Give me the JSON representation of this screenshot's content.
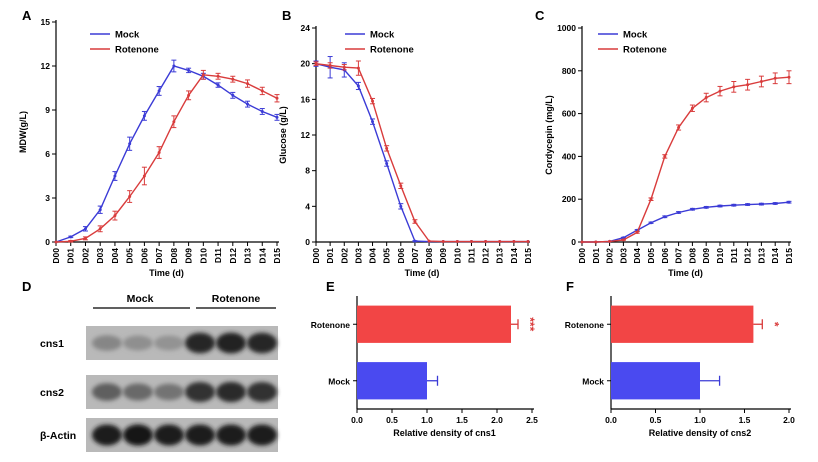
{
  "colors": {
    "mock": "#3b3bd6",
    "rotenone": "#d93c3c",
    "axis": "#000000",
    "bar_mock": "#4a4af0",
    "bar_rotenone": "#f24545"
  },
  "chart_data": [
    {
      "panel": "A",
      "type": "line",
      "x": [
        "D00",
        "D01",
        "D02",
        "D03",
        "D04",
        "D05",
        "D06",
        "D07",
        "D08",
        "D09",
        "D10",
        "D11",
        "D12",
        "D13",
        "D14",
        "D15"
      ],
      "xlabel": "Time (d)",
      "ylabel": "MDW(g/L)",
      "ylim": [
        0,
        15
      ],
      "yticks": [
        "0",
        "3",
        "6",
        "9",
        "12",
        "15"
      ],
      "legend": "top-left",
      "series": [
        {
          "name": "Mock",
          "color": "#3b3bd6",
          "values": [
            0,
            0.35,
            0.9,
            2.2,
            4.5,
            6.7,
            8.6,
            10.3,
            12.0,
            11.7,
            11.3,
            10.7,
            10.0,
            9.4,
            8.9,
            8.5
          ],
          "errors": [
            0,
            0.05,
            0.15,
            0.25,
            0.3,
            0.45,
            0.3,
            0.3,
            0.4,
            0.15,
            0.2,
            0.15,
            0.2,
            0.2,
            0.2,
            0.2
          ]
        },
        {
          "name": "Rotenone",
          "color": "#d93c3c",
          "values": [
            0,
            0.05,
            0.25,
            0.9,
            1.8,
            3.1,
            4.5,
            6.1,
            8.2,
            10.0,
            11.4,
            11.3,
            11.1,
            10.8,
            10.3,
            9.8
          ],
          "errors": [
            0,
            0.05,
            0.1,
            0.2,
            0.3,
            0.4,
            0.6,
            0.4,
            0.4,
            0.3,
            0.3,
            0.2,
            0.2,
            0.25,
            0.25,
            0.25
          ]
        }
      ]
    },
    {
      "panel": "B",
      "type": "line",
      "x": [
        "D00",
        "D01",
        "D02",
        "D03",
        "D04",
        "D05",
        "D06",
        "D07",
        "D08",
        "D09",
        "D10",
        "D11",
        "D12",
        "D13",
        "D14",
        "D15"
      ],
      "xlabel": "Time (d)",
      "ylabel": "Glucose (g/L)",
      "ylim": [
        0,
        24
      ],
      "yticks": [
        "0",
        "4",
        "8",
        "12",
        "16",
        "20",
        "24"
      ],
      "legend": "top-right",
      "series": [
        {
          "name": "Mock",
          "color": "#3b3bd6",
          "values": [
            20,
            19.6,
            19.3,
            17.5,
            13.5,
            8.8,
            4.0,
            0.1,
            0.05,
            0.05,
            0.05,
            0.05,
            0.05,
            0.05,
            0.05,
            0.05
          ],
          "errors": [
            0.3,
            1.2,
            0.8,
            0.4,
            0.3,
            0.3,
            0.3,
            0.05,
            0,
            0,
            0,
            0,
            0,
            0,
            0,
            0
          ]
        },
        {
          "name": "Rotenone",
          "color": "#d93c3c",
          "values": [
            20,
            19.8,
            19.6,
            19.5,
            15.8,
            10.5,
            6.3,
            2.3,
            0.1,
            0.05,
            0.05,
            0.05,
            0.05,
            0.05,
            0.05,
            0.05
          ],
          "errors": [
            0.2,
            0.3,
            0.3,
            0.8,
            0.3,
            0.3,
            0.3,
            0.2,
            0,
            0,
            0,
            0,
            0,
            0,
            0,
            0
          ]
        }
      ]
    },
    {
      "panel": "C",
      "type": "line",
      "x": [
        "D00",
        "D01",
        "D02",
        "D03",
        "D04",
        "D05",
        "D06",
        "D07",
        "D08",
        "D09",
        "D10",
        "D11",
        "D12",
        "D13",
        "D14",
        "D15"
      ],
      "xlabel": "Time (d)",
      "ylabel": "Cordycepin (mg/L)",
      "ylim": [
        0,
        1000
      ],
      "yticks": [
        "0",
        "200",
        "400",
        "600",
        "800",
        "1000"
      ],
      "legend": "top-left",
      "series": [
        {
          "name": "Mock",
          "color": "#3b3bd6",
          "values": [
            0,
            0,
            3,
            20,
            55,
            90,
            118,
            138,
            153,
            162,
            168,
            172,
            175,
            177,
            180,
            186
          ],
          "errors": [
            0,
            0,
            0,
            2,
            3,
            3,
            4,
            4,
            4,
            4,
            4,
            4,
            4,
            4,
            4,
            4
          ]
        },
        {
          "name": "Rotenone",
          "color": "#d93c3c",
          "values": [
            0,
            0,
            3,
            10,
            45,
            200,
            400,
            535,
            625,
            675,
            705,
            725,
            735,
            750,
            765,
            770
          ],
          "errors": [
            0,
            0,
            0,
            2,
            4,
            6,
            8,
            12,
            15,
            20,
            22,
            25,
            25,
            25,
            25,
            30
          ]
        }
      ]
    },
    {
      "panel": "E",
      "type": "bar",
      "orientation": "horizontal",
      "categories": [
        "Rotenone",
        "Mock"
      ],
      "values": [
        2.2,
        1.0
      ],
      "errors": [
        0.1,
        0.15
      ],
      "xlim": [
        0,
        2.5
      ],
      "xticks": [
        "0.0",
        "0.5",
        "1.0",
        "1.5",
        "2.0",
        "2.5"
      ],
      "xlabel": "Relative density of cns1",
      "significance": [
        "***",
        ""
      ]
    },
    {
      "panel": "F",
      "type": "bar",
      "orientation": "horizontal",
      "categories": [
        "Rotenone",
        "Mock"
      ],
      "values": [
        1.6,
        1.0
      ],
      "errors": [
        0.1,
        0.22
      ],
      "xlim": [
        0,
        2.0
      ],
      "xticks": [
        "0.0",
        "0.5",
        "1.0",
        "1.5",
        "2.0"
      ],
      "xlabel": "Relative density of cns2",
      "significance": [
        "*",
        ""
      ]
    }
  ],
  "blot": {
    "panel": "D",
    "groups": [
      "Mock",
      "Rotenone"
    ],
    "rows": [
      {
        "label": "cns1",
        "intensities": [
          0.35,
          0.3,
          0.28,
          0.85,
          0.88,
          0.86
        ]
      },
      {
        "label": "cns2",
        "intensities": [
          0.55,
          0.5,
          0.45,
          0.8,
          0.82,
          0.8
        ]
      },
      {
        "label": "β-Actin",
        "intensities": [
          0.9,
          0.92,
          0.9,
          0.9,
          0.91,
          0.9
        ]
      }
    ]
  }
}
